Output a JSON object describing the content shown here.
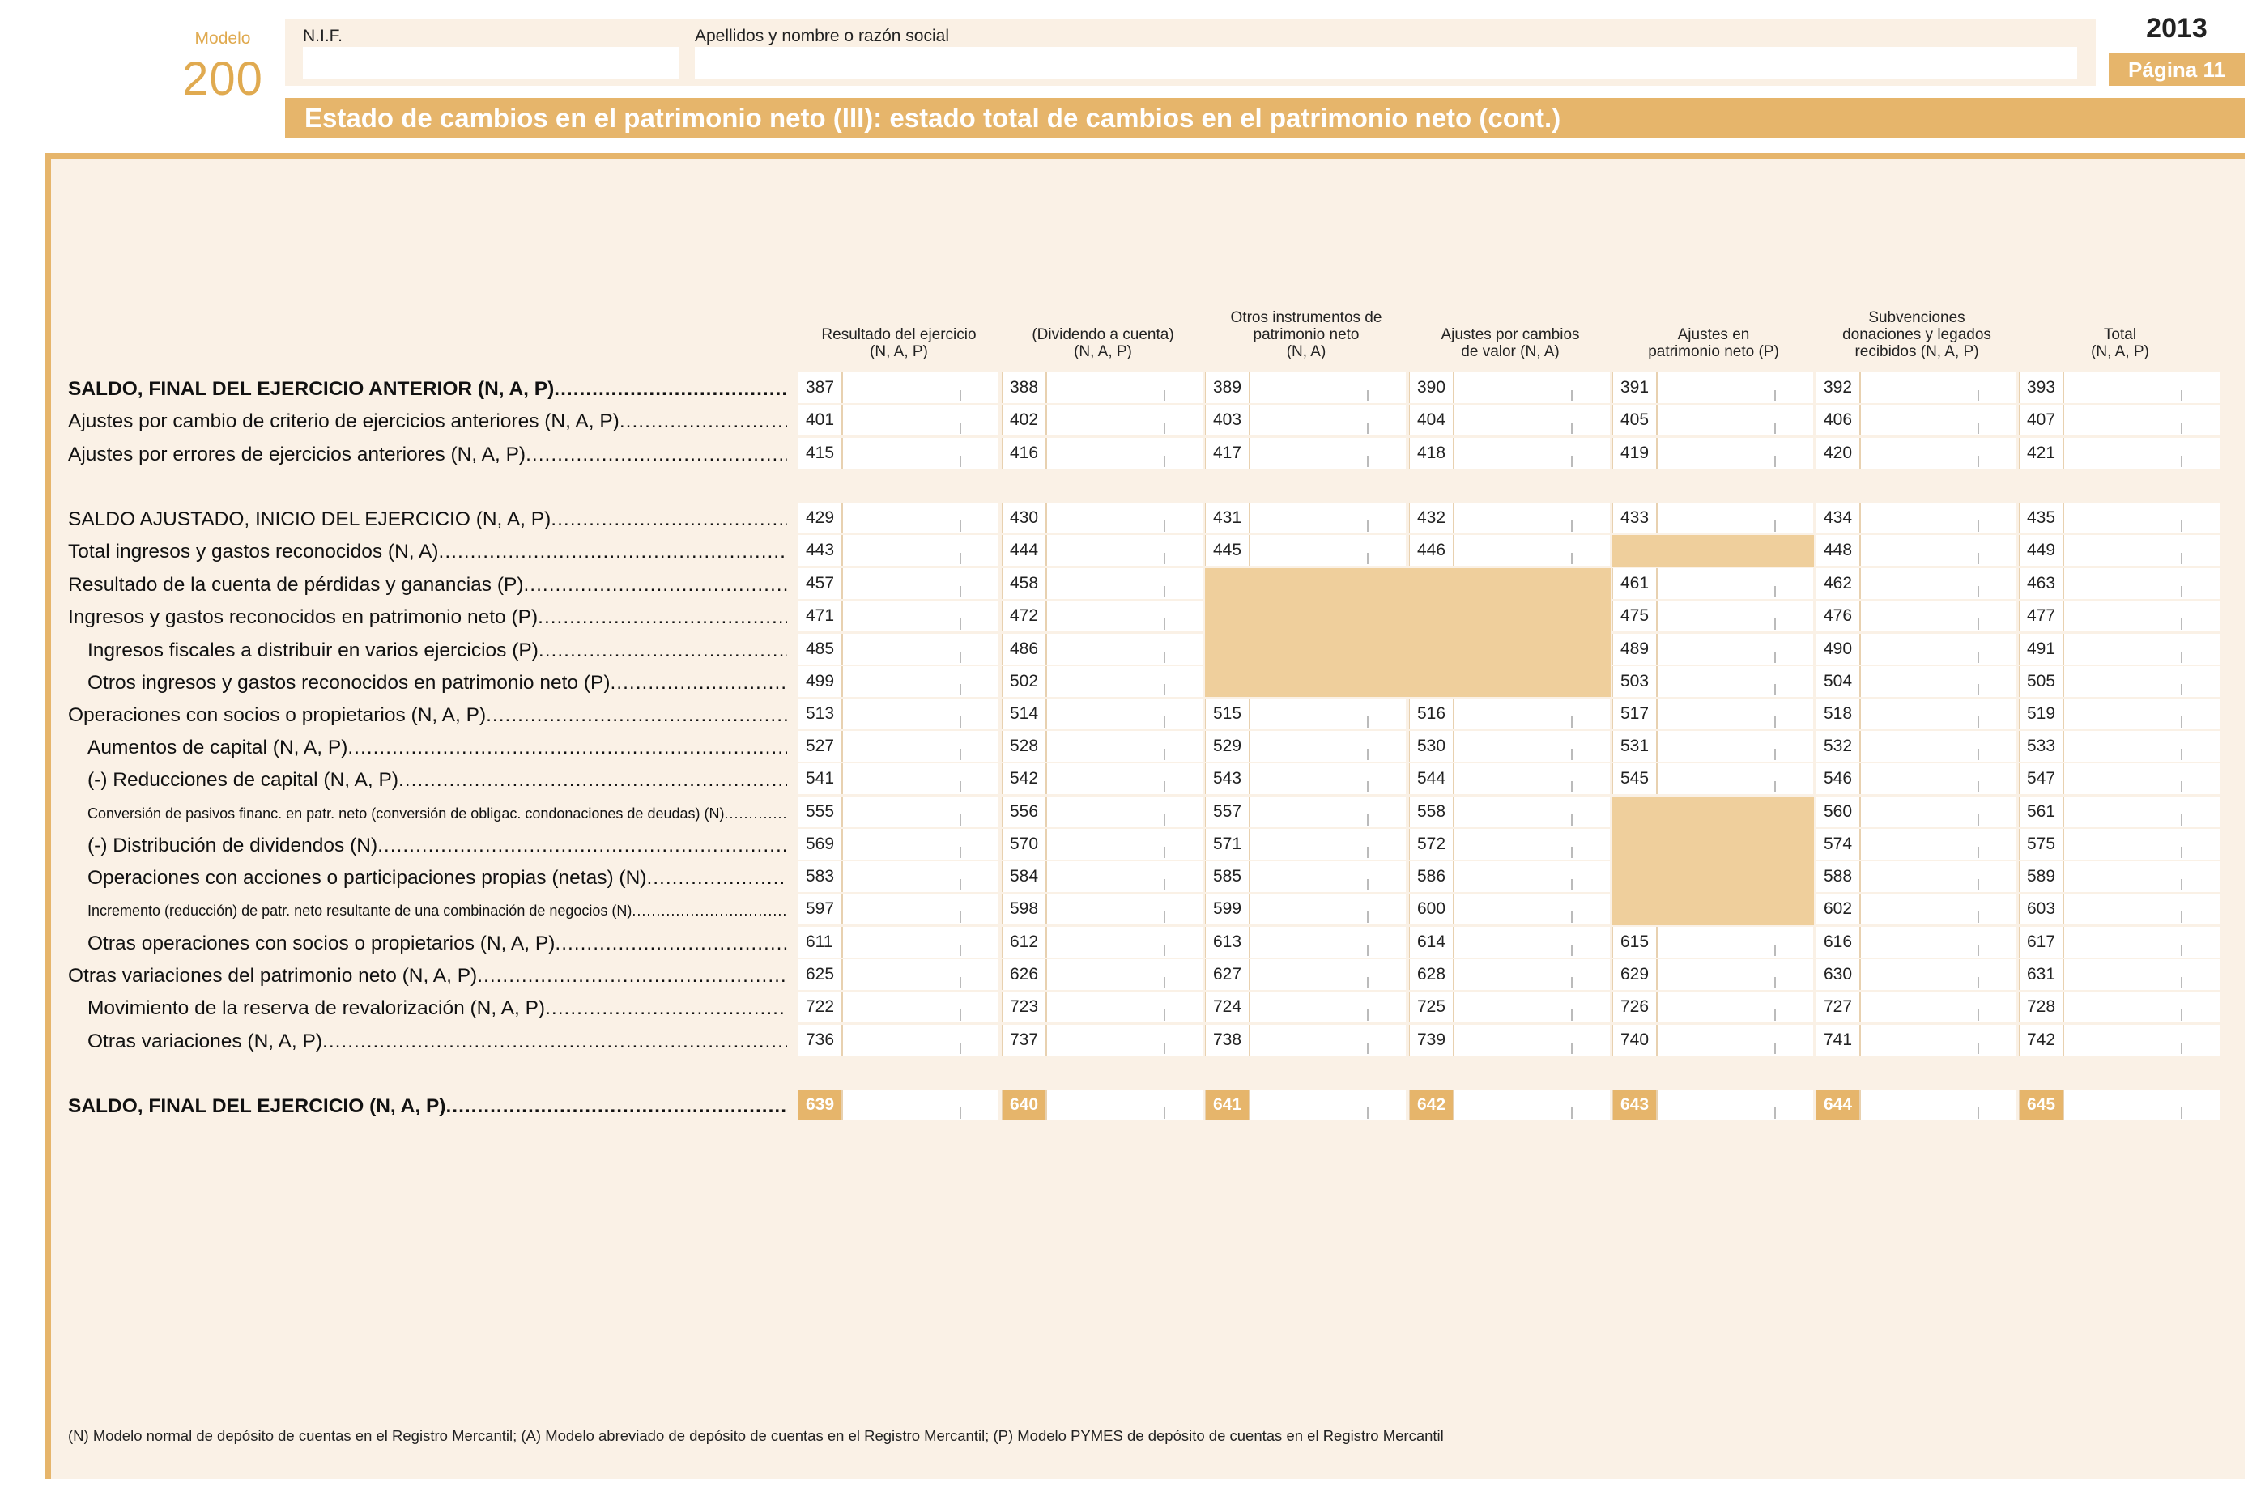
{
  "header": {
    "modelo_label": "Modelo",
    "modelo_number": "200",
    "nif_label": "N.I.F.",
    "nif_value": "",
    "name_label": "Apellidos y nombre o razón social",
    "name_value": "",
    "year": "2013",
    "page": "Página 11",
    "title": "Estado de cambios en el patrimonio neto (III): estado total de cambios en el patrimonio neto (cont.)"
  },
  "columns": [
    {
      "line1": "",
      "line2": "Resultado del ejercicio",
      "line3": "(N, A, P)"
    },
    {
      "line1": "",
      "line2": "(Dividendo a cuenta)",
      "line3": "(N, A, P)"
    },
    {
      "line1": "Otros instrumentos de",
      "line2": "patrimonio neto",
      "line3": "(N, A)"
    },
    {
      "line1": "",
      "line2": "Ajustes por cambios",
      "line3": "de valor (N, A)"
    },
    {
      "line1": "",
      "line2": "Ajustes en",
      "line3": "patrimonio neto (P)"
    },
    {
      "line1": "Subvenciones",
      "line2": "donaciones y legados",
      "line3": "recibidos (N, A, P)"
    },
    {
      "line1": "",
      "line2": "Total",
      "line3": "(N, A, P)"
    }
  ],
  "rows": [
    {
      "label": "SALDO, FINAL DEL EJERCICIO ANTERIOR (N, A, P)",
      "codes": [
        "387",
        "388",
        "389",
        "390",
        "391",
        "392",
        "393"
      ]
    },
    {
      "label": "Ajustes por cambio de criterio de ejercicios anteriores (N, A, P)",
      "codes": [
        "401",
        "402",
        "403",
        "404",
        "405",
        "406",
        "407"
      ]
    },
    {
      "label": "Ajustes por errores de ejercicios anteriores (N, A, P)",
      "codes": [
        "415",
        "416",
        "417",
        "418",
        "419",
        "420",
        "421"
      ]
    },
    {
      "label": "SALDO AJUSTADO, INICIO DEL EJERCICIO (N, A, P)",
      "codes": [
        "429",
        "430",
        "431",
        "432",
        "433",
        "434",
        "435"
      ]
    },
    {
      "label": "Total ingresos y gastos reconocidos (N, A)",
      "codes": [
        "443",
        "444",
        "445",
        "446",
        "",
        "448",
        "449"
      ]
    },
    {
      "label": "Resultado de la cuenta de pérdidas y ganancias (P)",
      "codes": [
        "457",
        "458",
        "",
        "",
        "461",
        "462",
        "463"
      ]
    },
    {
      "label": "Ingresos y gastos reconocidos en patrimonio neto (P)",
      "codes": [
        "471",
        "472",
        "",
        "",
        "475",
        "476",
        "477"
      ]
    },
    {
      "label": "Ingresos fiscales a distribuir en varios ejercicios (P)",
      "codes": [
        "485",
        "486",
        "",
        "",
        "489",
        "490",
        "491"
      ]
    },
    {
      "label": "Otros ingresos y gastos reconocidos en patrimonio neto (P)",
      "codes": [
        "499",
        "502",
        "",
        "",
        "503",
        "504",
        "505"
      ]
    },
    {
      "label": "Operaciones con socios o propietarios (N, A, P)",
      "codes": [
        "513",
        "514",
        "515",
        "516",
        "517",
        "518",
        "519"
      ]
    },
    {
      "label": "Aumentos de capital (N, A, P)",
      "codes": [
        "527",
        "528",
        "529",
        "530",
        "531",
        "532",
        "533"
      ]
    },
    {
      "label": "(-) Reducciones de capital (N, A, P)",
      "codes": [
        "541",
        "542",
        "543",
        "544",
        "545",
        "546",
        "547"
      ]
    },
    {
      "label": "Conversión de pasivos financ. en patr. neto (conversión de obligac. condonaciones de deudas) (N)",
      "codes": [
        "555",
        "556",
        "557",
        "558",
        "",
        "560",
        "561"
      ]
    },
    {
      "label": "(-) Distribución de dividendos (N)",
      "codes": [
        "569",
        "570",
        "571",
        "572",
        "",
        "574",
        "575"
      ]
    },
    {
      "label": "Operaciones con acciones o participaciones propias (netas) (N)",
      "codes": [
        "583",
        "584",
        "585",
        "586",
        "",
        "588",
        "589"
      ]
    },
    {
      "label": "Incremento (reducción) de patr. neto resultante de una combinación de negocios (N)",
      "codes": [
        "597",
        "598",
        "599",
        "600",
        "",
        "602",
        "603"
      ]
    },
    {
      "label": "Otras operaciones con socios o propietarios (N, A, P)",
      "codes": [
        "611",
        "612",
        "613",
        "614",
        "615",
        "616",
        "617"
      ]
    },
    {
      "label": "Otras variaciones del patrimonio neto (N, A, P)",
      "codes": [
        "625",
        "626",
        "627",
        "628",
        "629",
        "630",
        "631"
      ]
    },
    {
      "label": "Movimiento de la reserva de revalorización (N, A, P)",
      "codes": [
        "722",
        "723",
        "724",
        "725",
        "726",
        "727",
        "728"
      ]
    },
    {
      "label": "Otras variaciones (N, A, P)",
      "codes": [
        "736",
        "737",
        "738",
        "739",
        "740",
        "741",
        "742"
      ]
    },
    {
      "label": "SALDO, FINAL DEL EJERCICIO (N, A, P)",
      "codes": [
        "639",
        "640",
        "641",
        "642",
        "643",
        "644",
        "645"
      ]
    }
  ],
  "footnote": "(N)  Modelo normal de depósito de cuentas en el Registro Mercantil; (A) Modelo abreviado de depósito de cuentas en el Registro Mercantil; (P) Modelo PYMES de depósito de cuentas en el Registro Mercantil"
}
